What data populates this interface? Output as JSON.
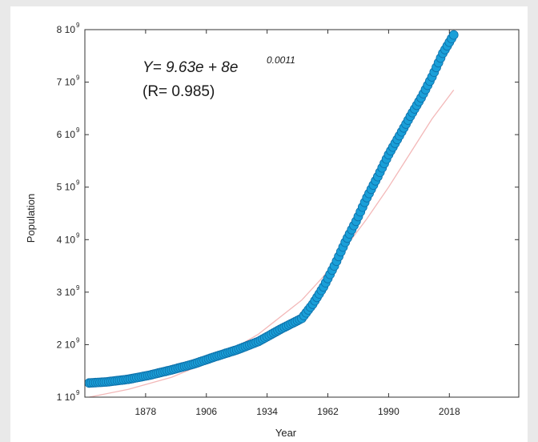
{
  "chart_data": {
    "type": "scatter",
    "xlabel": "Year",
    "ylabel": "Population",
    "xlim": [
      1850,
      2050
    ],
    "ylim": [
      1000000000,
      8000000000
    ],
    "x_ticks": [
      1878,
      1906,
      1934,
      1962,
      1990,
      2018
    ],
    "x_tick_labels": [
      "1878",
      "1906",
      "1934",
      "1962",
      "1990",
      "2018"
    ],
    "y_ticks": [
      {
        "value": 1000000000,
        "mantissa": "1 10",
        "exponent": "9"
      },
      {
        "value": 2000000000,
        "mantissa": "2 10",
        "exponent": "9"
      },
      {
        "value": 3000000000,
        "mantissa": "3 10",
        "exponent": "9"
      },
      {
        "value": 4000000000,
        "mantissa": "4 10",
        "exponent": "9"
      },
      {
        "value": 5000000000,
        "mantissa": "5 10",
        "exponent": "9"
      },
      {
        "value": 6000000000,
        "mantissa": "6 10",
        "exponent": "9"
      },
      {
        "value": 7000000000,
        "mantissa": "7 10",
        "exponent": "9"
      },
      {
        "value": 8000000000,
        "mantissa": "8 10",
        "exponent": "9"
      }
    ],
    "series": [
      {
        "type": "scatter",
        "color": "#1a9fd8",
        "edge_color": "#0d6fa8",
        "points": [
          [
            1852,
            1270000000
          ],
          [
            1860,
            1290000000
          ],
          [
            1870,
            1340000000
          ],
          [
            1880,
            1420000000
          ],
          [
            1890,
            1520000000
          ],
          [
            1900,
            1630000000
          ],
          [
            1910,
            1770000000
          ],
          [
            1920,
            1900000000
          ],
          [
            1930,
            2060000000
          ],
          [
            1940,
            2290000000
          ],
          [
            1950,
            2500000000
          ],
          [
            1955,
            2770000000
          ],
          [
            1960,
            3100000000
          ],
          [
            1965,
            3500000000
          ],
          [
            1970,
            3950000000
          ],
          [
            1975,
            4350000000
          ],
          [
            1980,
            4800000000
          ],
          [
            1985,
            5200000000
          ],
          [
            1990,
            5620000000
          ],
          [
            1995,
            5980000000
          ],
          [
            2000,
            6350000000
          ],
          [
            2005,
            6700000000
          ],
          [
            2010,
            7100000000
          ],
          [
            2015,
            7550000000
          ],
          [
            2020,
            7900000000
          ]
        ]
      },
      {
        "type": "line",
        "color": "#f3b8b8",
        "points": [
          [
            1852,
            1000000000
          ],
          [
            1870,
            1150000000
          ],
          [
            1890,
            1380000000
          ],
          [
            1910,
            1720000000
          ],
          [
            1930,
            2200000000
          ],
          [
            1950,
            2850000000
          ],
          [
            1960,
            3300000000
          ],
          [
            1970,
            3850000000
          ],
          [
            1980,
            4400000000
          ],
          [
            1990,
            5000000000
          ],
          [
            2000,
            5650000000
          ],
          [
            2010,
            6300000000
          ],
          [
            2020,
            6850000000
          ]
        ]
      }
    ],
    "annotations": {
      "equation_main": "Y= 9.63e + 8e",
      "equation_exponent": "0.0011",
      "r_value": "(R= 0.985)"
    },
    "grid": false
  }
}
